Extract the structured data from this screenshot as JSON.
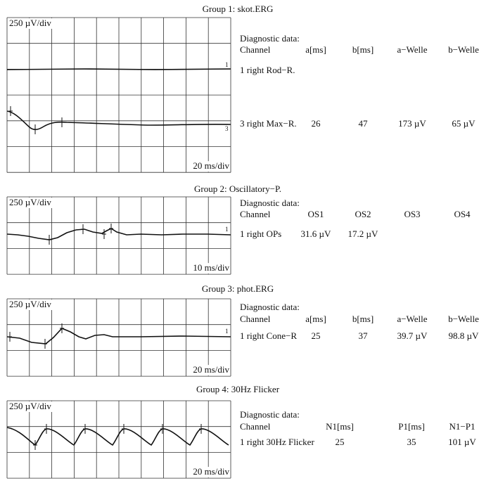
{
  "groups": [
    {
      "title": "Group 1: skot.ERG",
      "amplitude_scale": "250 µV/div",
      "time_scale": "20 ms/div",
      "channel_markers": [
        "1",
        "3"
      ],
      "table": {
        "caption": "Diagnostic data:",
        "header": [
          "Channel",
          "a[ms]",
          "b[ms]",
          "a−Welle",
          "b−Welle"
        ],
        "rows": [
          [
            "1 right Rod−R."
          ],
          [
            "3 right Max−R.",
            "26",
            "47",
            "173 µV",
            "65 µV"
          ]
        ]
      }
    },
    {
      "title": "Group 2: Oscillatory−P.",
      "amplitude_scale": "250 µV/div",
      "time_scale": "10 ms/div",
      "channel_markers": [
        "1"
      ],
      "table": {
        "caption": "Diagnostic data:",
        "header": [
          "Channel",
          "OS1",
          "OS2",
          "OS3",
          "OS4"
        ],
        "rows": [
          [
            "1 right OPs",
            "31.6 µV",
            "17.2 µV"
          ]
        ]
      }
    },
    {
      "title": "Group 3: phot.ERG",
      "amplitude_scale": "250 µV/div",
      "time_scale": "20 ms/div",
      "channel_markers": [
        "1"
      ],
      "table": {
        "caption": "Diagnostic data:",
        "header": [
          "Channel",
          "a[ms]",
          "b[ms]",
          "a−Welle",
          "b−Welle"
        ],
        "rows": [
          [
            "1 right Cone−R",
            "25",
            "37",
            "39.7 µV",
            "98.8 µV"
          ]
        ]
      }
    },
    {
      "title": "Group 4: 30Hz Flicker",
      "amplitude_scale": "250 µV/div",
      "time_scale": "20 ms/div",
      "table": {
        "caption": "Diagnostic data:",
        "header": [
          "Channel",
          "N1[ms]",
          "P1[ms]",
          "N1−P1"
        ],
        "rows": [
          [
            "1 right 30Hz Flicker",
            "25",
            "35",
            "101 µV"
          ]
        ]
      }
    }
  ]
}
